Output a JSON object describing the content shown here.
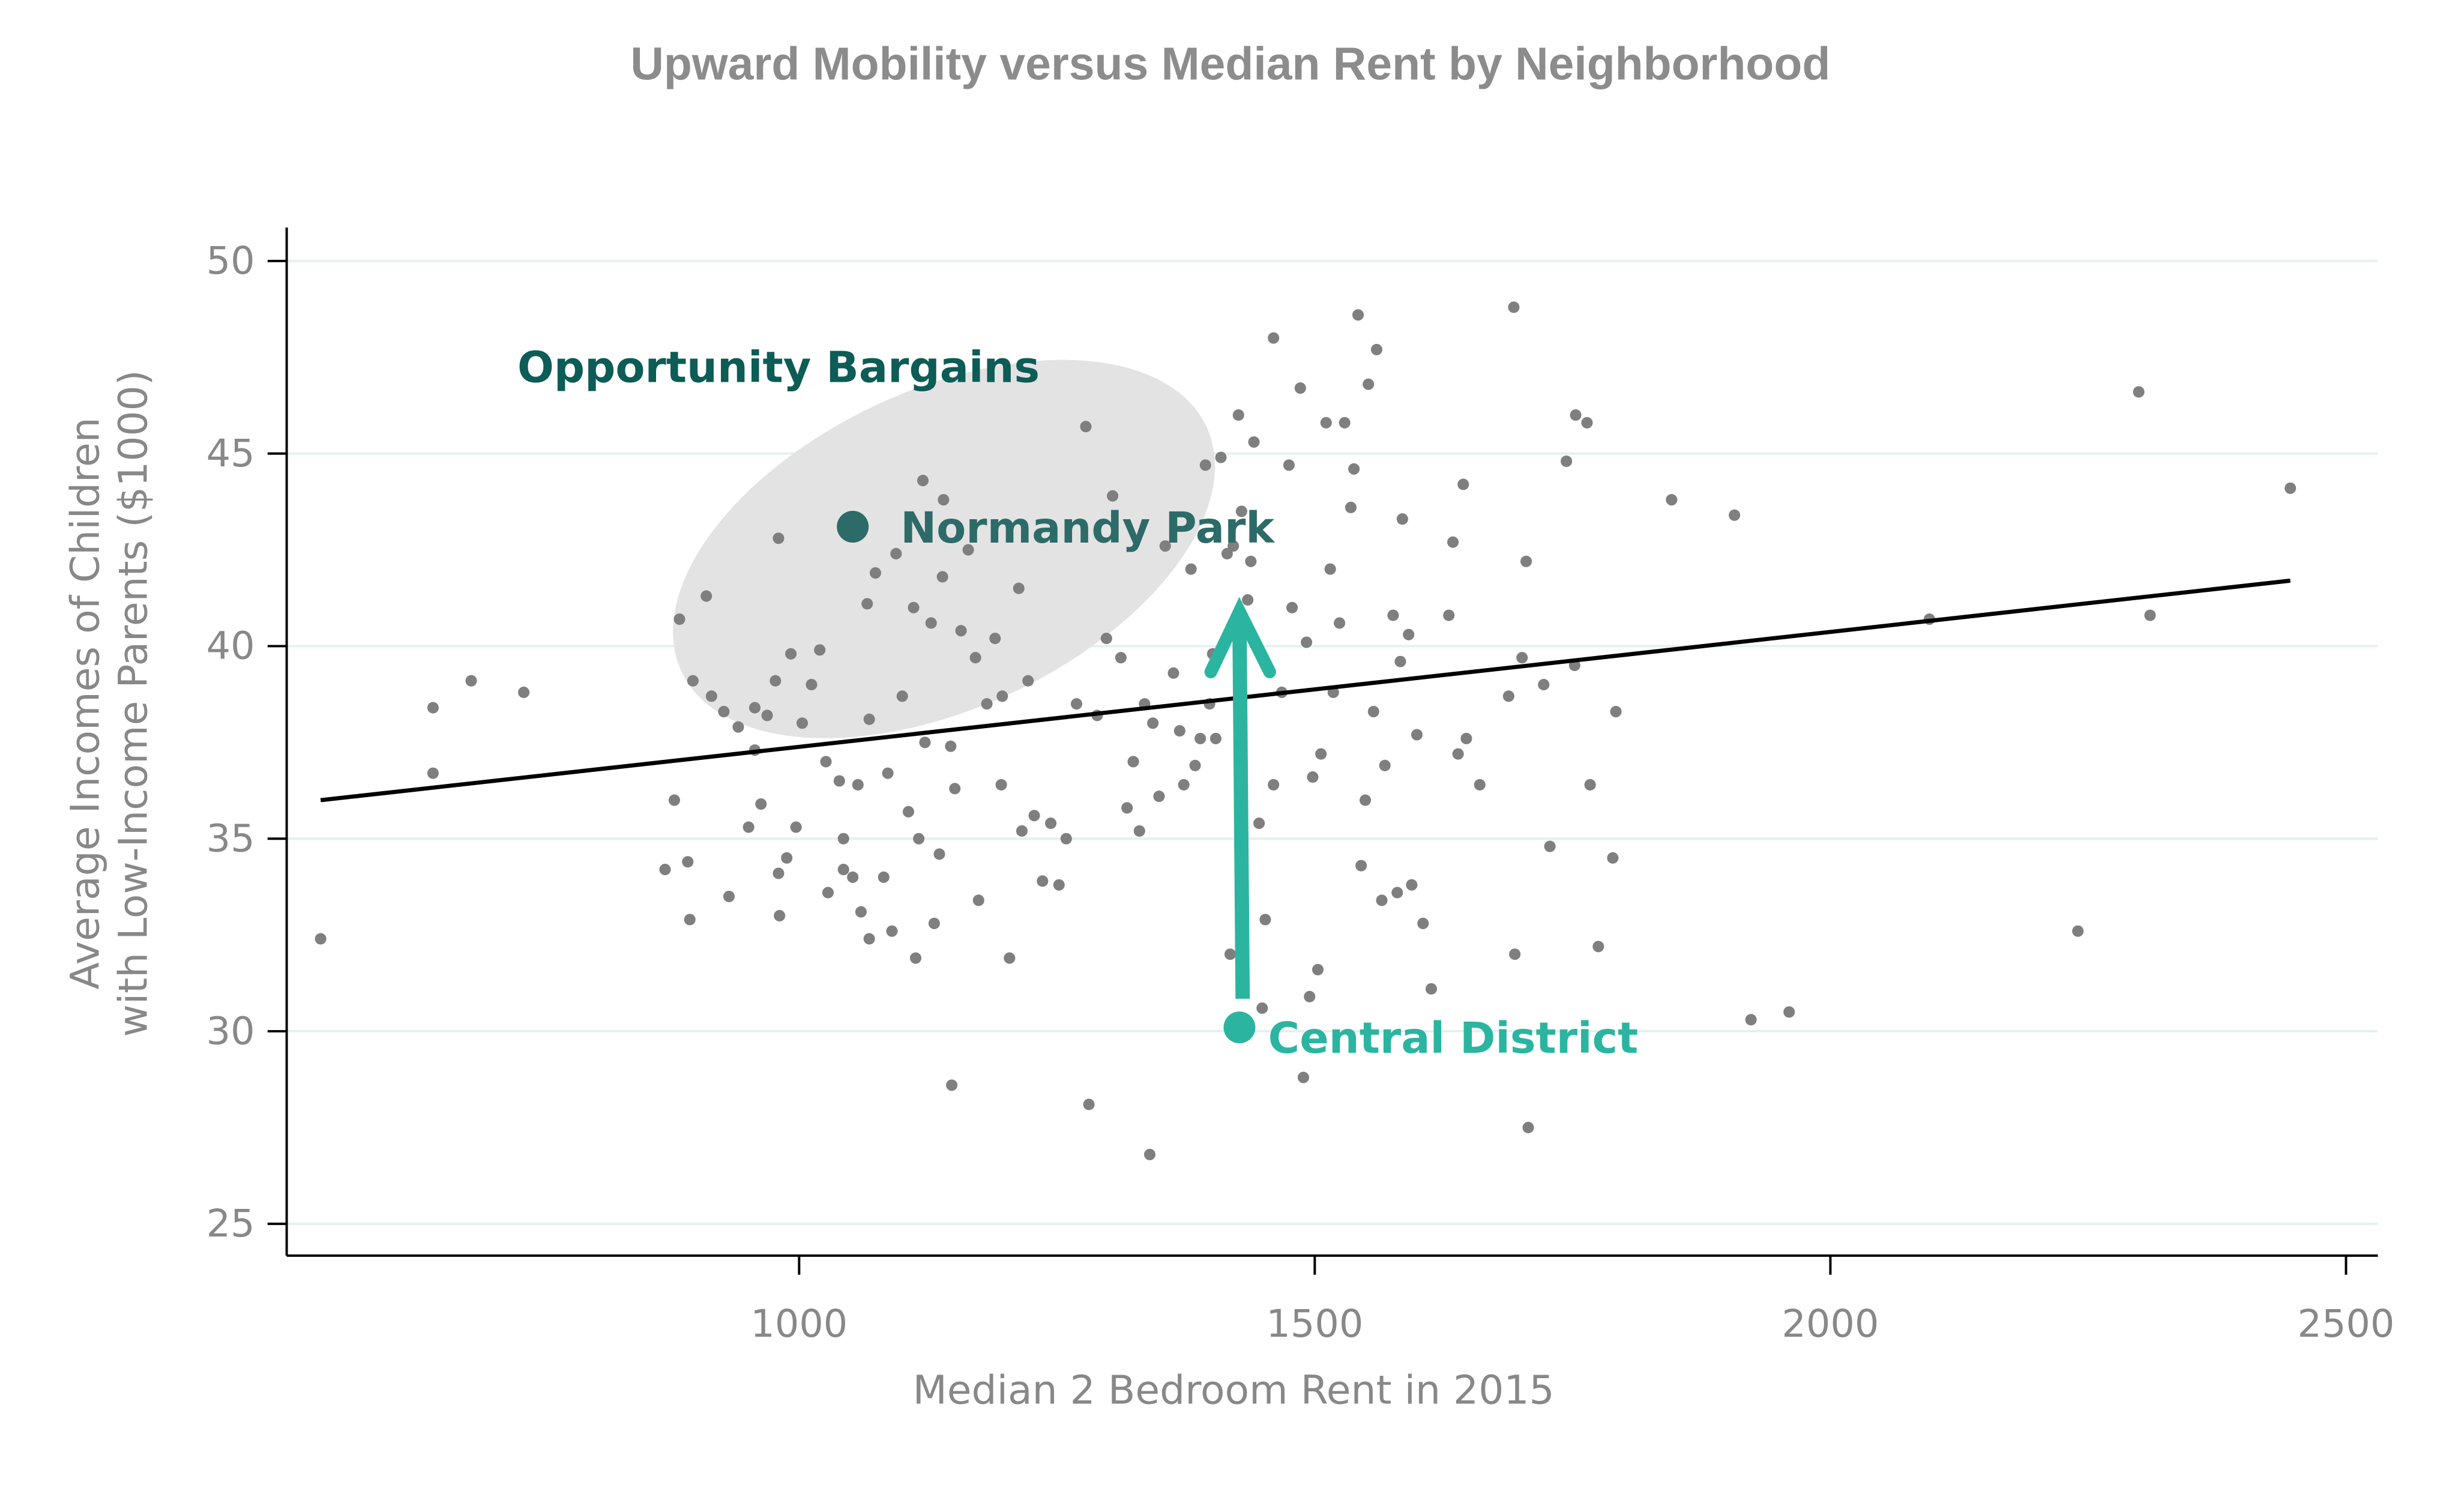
{
  "chart_data": {
    "type": "scatter",
    "title": "Upward Mobility versus Median Rent by Neighborhood",
    "xlabel": "Median 2 Bedroom Rent in 2015",
    "ylabel_lines": [
      "Average Incomes of Children",
      "with Low-Income Parents ($1000)"
    ],
    "xlim": [
      500,
      2530
    ],
    "ylim": [
      24.2,
      50.8
    ],
    "xticks": [
      1000,
      1500,
      2000,
      2500
    ],
    "xtick_labels": [
      "1000",
      "1500",
      "2000",
      "2500"
    ],
    "yticks": [
      25,
      30,
      35,
      40,
      45,
      50
    ],
    "ytick_labels": [
      "25",
      "30",
      "35",
      "40",
      "45",
      "50"
    ],
    "grid": "horizontal",
    "colors": {
      "points": "#7f7f7f",
      "fit": "#000000",
      "grid": "#e6f0ee",
      "highlight_dark": "#2d6b68",
      "highlight_light": "#2bb5a0",
      "region_label": "#0d5c56",
      "region_fill": "#e3e3e3"
    },
    "fit_line": {
      "x": [
        536,
        2446
      ],
      "y": [
        36.0,
        41.7
      ]
    },
    "points": [
      [
        536,
        32.4
      ],
      [
        645,
        38.4
      ],
      [
        645,
        36.7
      ],
      [
        682,
        39.1
      ],
      [
        733,
        38.8
      ],
      [
        870,
        34.2
      ],
      [
        879,
        36.0
      ],
      [
        884,
        40.7
      ],
      [
        894,
        32.9
      ],
      [
        892,
        34.4
      ],
      [
        897,
        39.1
      ],
      [
        910,
        41.3
      ],
      [
        915,
        38.7
      ],
      [
        927,
        38.3
      ],
      [
        932,
        33.5
      ],
      [
        941,
        37.9
      ],
      [
        951,
        35.3
      ],
      [
        957,
        37.3
      ],
      [
        963,
        35.9
      ],
      [
        957,
        38.4
      ],
      [
        969,
        38.2
      ],
      [
        977,
        39.1
      ],
      [
        980,
        42.8
      ],
      [
        980,
        34.1
      ],
      [
        981,
        33.0
      ],
      [
        988,
        34.5
      ],
      [
        992,
        39.8
      ],
      [
        997,
        35.3
      ],
      [
        1003,
        38.0
      ],
      [
        1012,
        39.0
      ],
      [
        1020,
        39.9
      ],
      [
        1026,
        37.0
      ],
      [
        1028,
        33.6
      ],
      [
        1039,
        36.5
      ],
      [
        1043,
        35.0
      ],
      [
        1043,
        34.2
      ],
      [
        1052,
        34.0
      ],
      [
        1057,
        36.4
      ],
      [
        1060,
        33.1
      ],
      [
        1066,
        41.1
      ],
      [
        1068,
        32.4
      ],
      [
        1068,
        38.1
      ],
      [
        1074,
        41.9
      ],
      [
        1082,
        34.0
      ],
      [
        1086,
        36.7
      ],
      [
        1090,
        32.6
      ],
      [
        1094,
        42.4
      ],
      [
        1100,
        38.7
      ],
      [
        1106,
        35.7
      ],
      [
        1111,
        41.0
      ],
      [
        1113,
        31.9
      ],
      [
        1116,
        35.0
      ],
      [
        1120,
        44.3
      ],
      [
        1122,
        37.5
      ],
      [
        1128,
        40.6
      ],
      [
        1131,
        32.8
      ],
      [
        1136,
        34.6
      ],
      [
        1139,
        41.8
      ],
      [
        1140,
        43.8
      ],
      [
        1148,
        28.6
      ],
      [
        1147,
        37.4
      ],
      [
        1151,
        36.3
      ],
      [
        1157,
        40.4
      ],
      [
        1164,
        42.5
      ],
      [
        1171,
        39.7
      ],
      [
        1174,
        33.4
      ],
      [
        1182,
        38.5
      ],
      [
        1190,
        40.2
      ],
      [
        1196,
        36.4
      ],
      [
        1197,
        38.7
      ],
      [
        1204,
        31.9
      ],
      [
        1213,
        41.5
      ],
      [
        1216,
        35.2
      ],
      [
        1222,
        39.1
      ],
      [
        1228,
        35.6
      ],
      [
        1236,
        33.9
      ],
      [
        1244,
        35.4
      ],
      [
        1252,
        33.8
      ],
      [
        1259,
        35.0
      ],
      [
        1269,
        38.5
      ],
      [
        1278,
        45.7
      ],
      [
        1281,
        28.1
      ],
      [
        1289,
        38.2
      ],
      [
        1298,
        40.2
      ],
      [
        1304,
        43.9
      ],
      [
        1312,
        39.7
      ],
      [
        1318,
        35.8
      ],
      [
        1324,
        37.0
      ],
      [
        1330,
        35.2
      ],
      [
        1335,
        38.5
      ],
      [
        1340,
        26.8
      ],
      [
        1343,
        38.0
      ],
      [
        1349,
        36.1
      ],
      [
        1355,
        42.6
      ],
      [
        1363,
        39.3
      ],
      [
        1369,
        37.8
      ],
      [
        1373,
        36.4
      ],
      [
        1380,
        42.0
      ],
      [
        1384,
        36.9
      ],
      [
        1389,
        37.6
      ],
      [
        1394,
        44.7
      ],
      [
        1398,
        38.5
      ],
      [
        1401,
        39.8
      ],
      [
        1404,
        37.6
      ],
      [
        1409,
        44.9
      ],
      [
        1415,
        42.4
      ],
      [
        1418,
        32.0
      ],
      [
        1421,
        42.6
      ],
      [
        1426,
        46.0
      ],
      [
        1429,
        43.5
      ],
      [
        1435,
        41.2
      ],
      [
        1438,
        42.2
      ],
      [
        1441,
        45.3
      ],
      [
        1446,
        35.4
      ],
      [
        1452,
        32.9
      ],
      [
        1449,
        30.6
      ],
      [
        1460,
        36.4
      ],
      [
        1460,
        48.0
      ],
      [
        1468,
        38.8
      ],
      [
        1475,
        44.7
      ],
      [
        1478,
        41.0
      ],
      [
        1486,
        46.7
      ],
      [
        1489,
        28.8
      ],
      [
        1492,
        40.1
      ],
      [
        1495,
        30.9
      ],
      [
        1498,
        36.6
      ],
      [
        1503,
        31.6
      ],
      [
        1506,
        37.2
      ],
      [
        1511,
        45.8
      ],
      [
        1515,
        42.0
      ],
      [
        1518,
        38.8
      ],
      [
        1524,
        40.6
      ],
      [
        1529,
        45.8
      ],
      [
        1535,
        43.6
      ],
      [
        1538,
        44.6
      ],
      [
        1542,
        48.6
      ],
      [
        1545,
        34.3
      ],
      [
        1549,
        36.0
      ],
      [
        1552,
        46.8
      ],
      [
        1557,
        38.3
      ],
      [
        1560,
        47.7
      ],
      [
        1565,
        33.4
      ],
      [
        1568,
        36.9
      ],
      [
        1576,
        40.8
      ],
      [
        1580,
        33.6
      ],
      [
        1583,
        39.6
      ],
      [
        1585,
        43.3
      ],
      [
        1591,
        40.3
      ],
      [
        1594,
        33.8
      ],
      [
        1599,
        37.7
      ],
      [
        1605,
        32.8
      ],
      [
        1613,
        31.1
      ],
      [
        1630,
        40.8
      ],
      [
        1634,
        42.7
      ],
      [
        1639,
        37.2
      ],
      [
        1644,
        44.2
      ],
      [
        1647,
        37.6
      ],
      [
        1660,
        36.4
      ],
      [
        1688,
        38.7
      ],
      [
        1693,
        48.8
      ],
      [
        1694,
        32.0
      ],
      [
        1701,
        39.7
      ],
      [
        1705,
        42.2
      ],
      [
        1707,
        27.5
      ],
      [
        1722,
        39.0
      ],
      [
        1728,
        34.8
      ],
      [
        1744,
        44.8
      ],
      [
        1753,
        46.0
      ],
      [
        1752,
        39.5
      ],
      [
        1764,
        45.8
      ],
      [
        1767,
        36.4
      ],
      [
        1775,
        32.2
      ],
      [
        1789,
        34.5
      ],
      [
        1792,
        38.3
      ],
      [
        1846,
        43.8
      ],
      [
        1907,
        43.4
      ],
      [
        1923,
        30.3
      ],
      [
        1960,
        30.5
      ],
      [
        2096,
        40.7
      ],
      [
        2240,
        32.6
      ],
      [
        2299,
        46.6
      ],
      [
        2310,
        40.8
      ],
      [
        2446,
        44.1
      ]
    ],
    "annotations": {
      "region_label": "Opportunity Bargains",
      "normandy_park": {
        "label": "Normandy Park",
        "x": 1052,
        "y": 43.1
      },
      "central_district": {
        "label": "Central District",
        "x": 1427,
        "y": 30.1,
        "arrow_to_y": 40.9
      }
    }
  }
}
